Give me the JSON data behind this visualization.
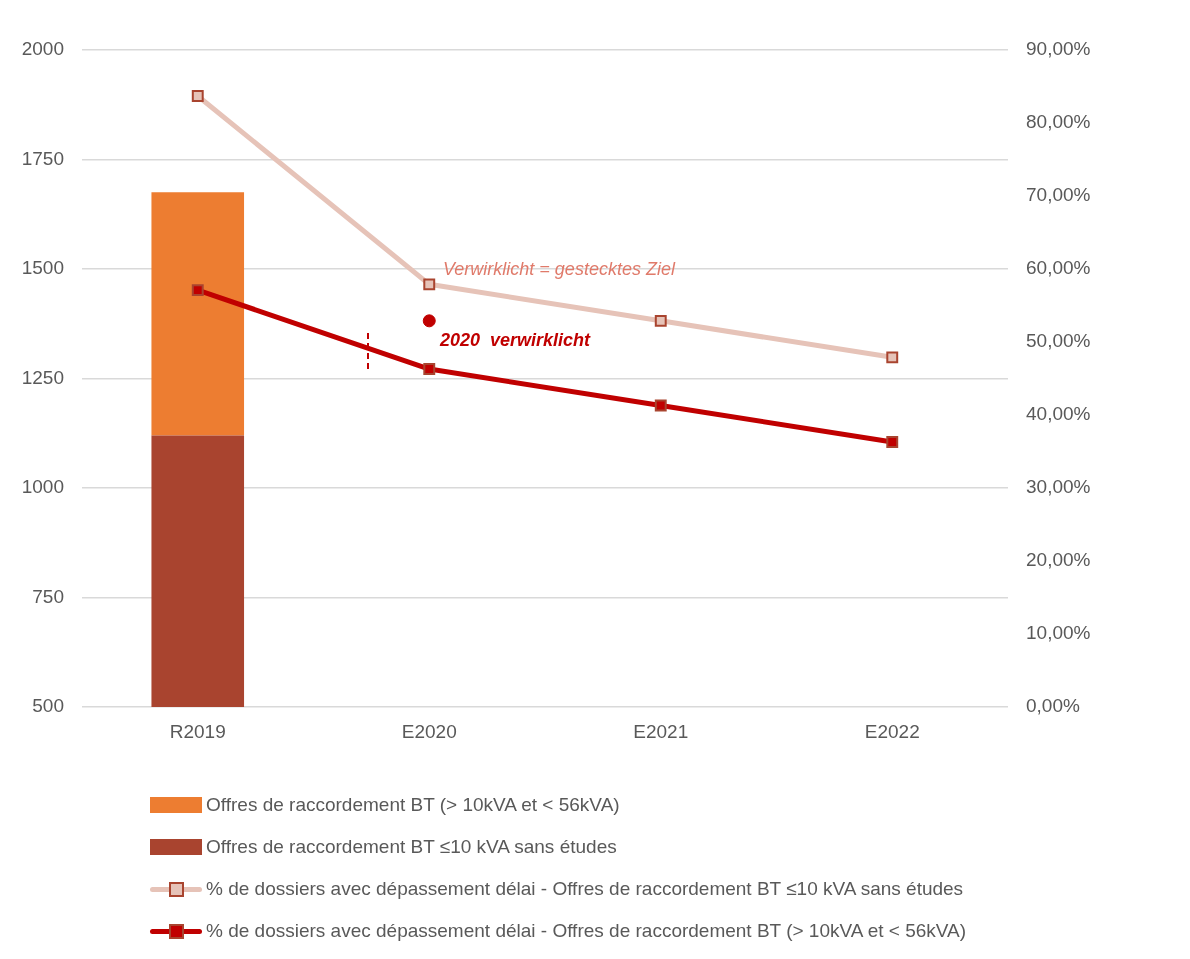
{
  "chart_data": {
    "type": "bar",
    "stacked": true,
    "categories": [
      "R2019",
      "E2020",
      "E2021",
      "E2022"
    ],
    "series": [
      {
        "name": "Offres de raccordement BT ≤10 kVA sans études",
        "color": "#a9442f",
        "values": [
          1120,
          null,
          null,
          null
        ]
      },
      {
        "name": "Offres de raccordement BT (> 10kVA et < 56kVA)",
        "color": "#ed7d31",
        "values": [
          555,
          null,
          null,
          null
        ]
      },
      {
        "name": "% de dossiers avec dépassement délai - Offres de raccordement BT ≤10 kVA sans études",
        "type": "line",
        "axis": "y2",
        "color": "#e6c3b8",
        "marker": "square",
        "values": [
          83.7,
          57.9,
          52.9,
          47.9
        ]
      },
      {
        "name": "% de dossiers avec dépassement délai - Offres de raccordement BT (> 10kVA et < 56kVA)",
        "type": "line",
        "axis": "y2",
        "color": "#c00000",
        "marker": "square",
        "values": [
          57.1,
          46.3,
          41.3,
          36.3
        ]
      },
      {
        "type": "scatter",
        "axis": "y2",
        "color": "#c00000",
        "marker": "circle",
        "values": [
          null,
          52.9,
          null,
          null
        ]
      }
    ],
    "ylim": [
      500,
      2000
    ],
    "yticks": [
      500,
      750,
      1000,
      1250,
      1500,
      1750,
      2000
    ],
    "y2lim": [
      0,
      90
    ],
    "y2ticks": [
      {
        "value": 0,
        "label": "0,00%"
      },
      {
        "value": 10,
        "label": "10,00%"
      },
      {
        "value": 20,
        "label": "20,00%"
      },
      {
        "value": 30,
        "label": "30,00%"
      },
      {
        "value": 40,
        "label": "40,00%"
      },
      {
        "value": 50,
        "label": "50,00%"
      },
      {
        "value": 60,
        "label": "60,00%"
      },
      {
        "value": 70,
        "label": "70,00%"
      },
      {
        "value": 80,
        "label": "80,00%"
      },
      {
        "value": 90,
        "label": "90,00%"
      }
    ],
    "grid": "y",
    "legend": "bottom",
    "annotations": [
      "Verwirklicht = gestecktes Ziel",
      "2020  verwirklicht"
    ]
  }
}
